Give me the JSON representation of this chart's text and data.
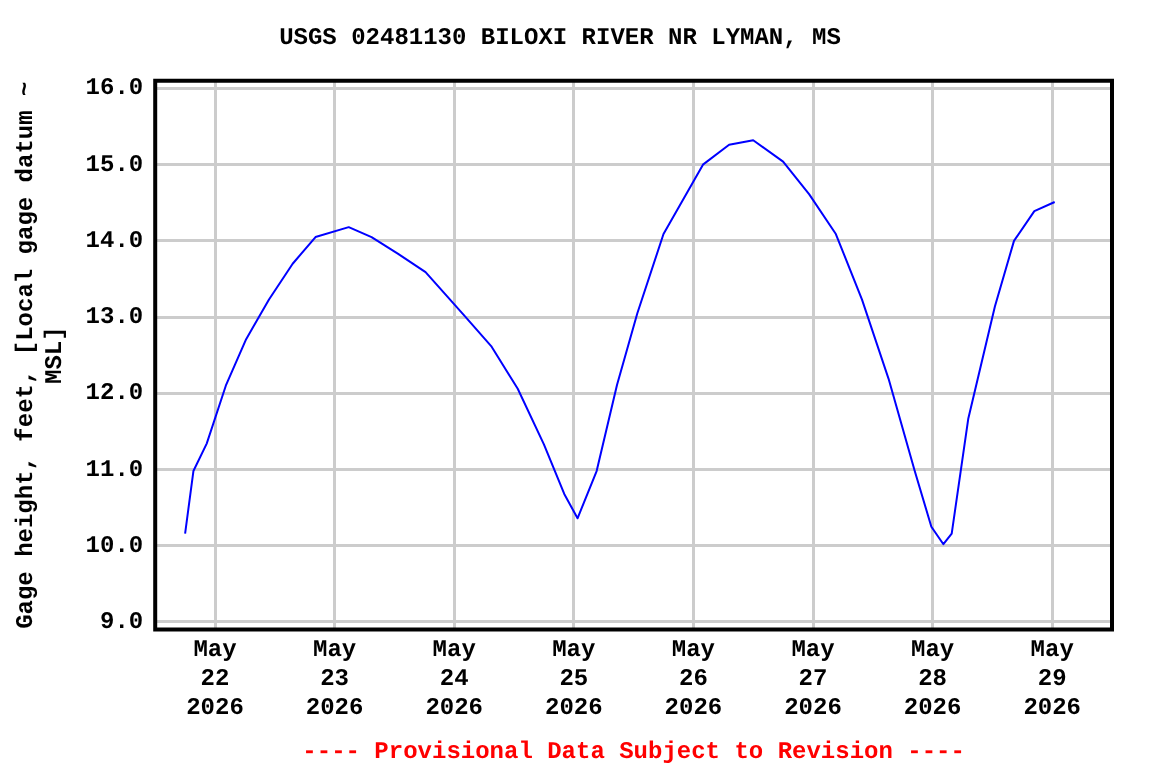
{
  "chart_data": {
    "type": "line",
    "title": "USGS 02481130 BILOXI RIVER NR LYMAN, MS",
    "ylabel": "Gage height, feet, [Local gage datum ~ MSL]",
    "annotations": [
      "---- Provisional Data Subject to Revision ----"
    ],
    "x": [
      "2026-05-21T18:00",
      "2026-05-21T19:40",
      "2026-05-21T22:20",
      "2026-05-22T02:10",
      "2026-05-22T06:15",
      "2026-05-22T10:50",
      "2026-05-22T15:35",
      "2026-05-22T20:10",
      "2026-05-23T02:50",
      "2026-05-23T07:25",
      "2026-05-23T12:45",
      "2026-05-23T18:15",
      "2026-05-24T02:10",
      "2026-05-24T07:25",
      "2026-05-24T12:45",
      "2026-05-24T18:00",
      "2026-05-24T22:05",
      "2026-05-25T00:45",
      "2026-05-25T04:35",
      "2026-05-25T08:40",
      "2026-05-25T12:45",
      "2026-05-25T18:00",
      "2026-05-26T01:55",
      "2026-05-26T07:10",
      "2026-05-26T12:00",
      "2026-05-26T18:00",
      "2026-05-26T23:15",
      "2026-05-27T04:35",
      "2026-05-27T09:50",
      "2026-05-27T15:10",
      "2026-05-27T20:25",
      "2026-05-27T23:45",
      "2026-05-28T02:10",
      "2026-05-28T03:50",
      "2026-05-28T07:10",
      "2026-05-28T12:30",
      "2026-05-28T16:20",
      "2026-05-28T20:25",
      "2026-05-29T00:30"
    ],
    "series": [
      {
        "color": "#0000ff",
        "values": [
          10.16,
          10.98,
          11.34,
          12.1,
          12.71,
          13.23,
          13.7,
          14.05,
          14.18,
          14.05,
          13.83,
          13.59,
          13.01,
          12.62,
          12.06,
          11.33,
          10.68,
          10.36,
          10.98,
          12.11,
          13.05,
          14.09,
          15.0,
          15.26,
          15.32,
          15.04,
          14.61,
          14.09,
          13.23,
          12.19,
          10.98,
          10.25,
          10.02,
          10.16,
          11.67,
          13.14,
          14.0,
          14.39,
          14.51
        ]
      }
    ],
    "xlim": [
      "2026-05-21T12:00",
      "2026-05-29T12:00"
    ],
    "xticks": [
      {
        "value": "2026-05-22",
        "label": "May\n22\n2026"
      },
      {
        "value": "2026-05-23",
        "label": "May\n23\n2026"
      },
      {
        "value": "2026-05-24",
        "label": "May\n24\n2026"
      },
      {
        "value": "2026-05-25",
        "label": "May\n25\n2026"
      },
      {
        "value": "2026-05-26",
        "label": "May\n26\n2026"
      },
      {
        "value": "2026-05-27",
        "label": "May\n27\n2026"
      },
      {
        "value": "2026-05-28",
        "label": "May\n28\n2026"
      },
      {
        "value": "2026-05-29",
        "label": "May\n29\n2026"
      }
    ],
    "ylim": [
      8.9,
      16.1
    ],
    "yticks": [
      {
        "value": 9,
        "label": "9.0"
      },
      {
        "value": 10,
        "label": "10.0"
      },
      {
        "value": 11,
        "label": "11.0"
      },
      {
        "value": 12,
        "label": "12.0"
      },
      {
        "value": 13,
        "label": "13.0"
      },
      {
        "value": 14,
        "label": "14.0"
      },
      {
        "value": 15,
        "label": "15.0"
      },
      {
        "value": 16,
        "label": "16.0"
      }
    ],
    "grid": true,
    "legend": false,
    "marker": "none",
    "line_style": "solid"
  }
}
